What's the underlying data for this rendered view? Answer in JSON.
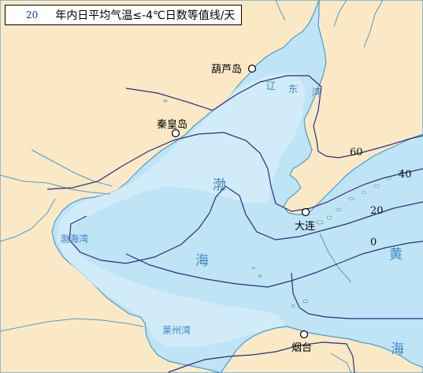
{
  "legend": {
    "value": "20",
    "text": "年内日平均气温≤-4℃日数等值线/天"
  },
  "colors": {
    "land": "#fbe9c6",
    "sea": "#bfe4f6",
    "shallow": "#d8effa",
    "coast": "#4a9ccd",
    "isoline": "#2b2f7a",
    "river": "#4a9ccd",
    "sea_text": "#3d85c6"
  },
  "cities": [
    {
      "name": "葫芦岛"
    },
    {
      "name": "秦皇岛"
    },
    {
      "name": "大连"
    },
    {
      "name": "烟台"
    }
  ],
  "sea_labels": [
    {
      "text": "辽"
    },
    {
      "text": "东"
    },
    {
      "text": "湾"
    },
    {
      "text": "渤"
    },
    {
      "text": "海"
    },
    {
      "text": "渤海湾"
    },
    {
      "text": "莱州湾"
    },
    {
      "text": "黄"
    },
    {
      "text": "海"
    }
  ],
  "isolines": [
    {
      "value": "60"
    },
    {
      "value": "40"
    },
    {
      "value": "20"
    },
    {
      "value": "0"
    }
  ]
}
